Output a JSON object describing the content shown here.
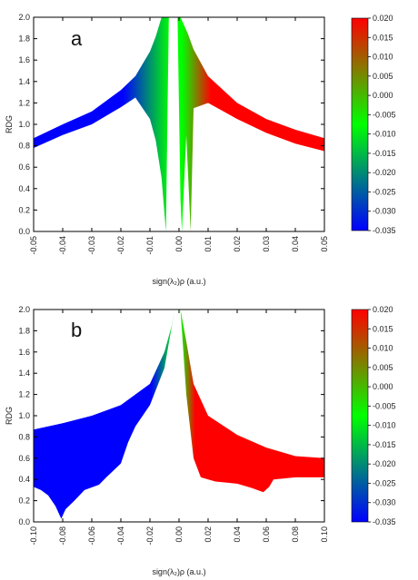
{
  "chart_data": [
    {
      "type": "scatter",
      "panel_label": "a",
      "xlabel": "sign(λ₂)ρ (a.u.)",
      "ylabel": "RDG",
      "xlim": [
        -0.05,
        0.05
      ],
      "ylim": [
        0.0,
        2.0
      ],
      "xticks": [
        "-0.05",
        "-0.04",
        "-0.03",
        "-0.02",
        "-0.01",
        "0.00",
        "0.01",
        "0.02",
        "0.03",
        "0.04",
        "0.05"
      ],
      "yticks": [
        "0.0",
        "0.2",
        "0.4",
        "0.6",
        "0.8",
        "1.0",
        "1.2",
        "1.4",
        "1.6",
        "1.8",
        "2.0"
      ],
      "colorbar": {
        "range": [
          -0.035,
          0.02
        ],
        "ticks": [
          "0.020",
          "0.015",
          "0.010",
          "0.005",
          "0.000",
          "-0.005",
          "-0.010",
          "-0.015",
          "-0.020",
          "-0.025",
          "-0.030",
          "-0.035"
        ],
        "colors": [
          "#0000ff",
          "#00ff00",
          "#ff0000"
        ]
      },
      "bands": [
        {
          "upper": [
            [
              -0.05,
              0.87
            ],
            [
              -0.04,
              1.0
            ],
            [
              -0.03,
              1.12
            ],
            [
              -0.02,
              1.32
            ],
            [
              -0.015,
              1.45
            ],
            [
              -0.01,
              1.68
            ],
            [
              -0.008,
              1.82
            ],
            [
              -0.006,
              2.0
            ]
          ],
          "lower": [
            [
              -0.05,
              0.78
            ],
            [
              -0.04,
              0.9
            ],
            [
              -0.03,
              1.0
            ],
            [
              -0.02,
              1.16
            ],
            [
              -0.015,
              1.25
            ],
            [
              -0.01,
              1.05
            ],
            [
              -0.008,
              0.85
            ],
            [
              -0.006,
              0.5
            ],
            [
              -0.0045,
              0.0
            ]
          ],
          "inner": [
            [
              -0.0045,
              0.0
            ],
            [
              -0.0035,
              2.0
            ]
          ]
        },
        {
          "spike": [
            [
              -0.0005,
              2.0
            ],
            [
              0.0005,
              0.3
            ],
            [
              0.001,
              0.0
            ],
            [
              0.0015,
              0.3
            ],
            [
              0.0025,
              0.9
            ]
          ],
          "upper": [
            [
              0.0005,
              2.0
            ],
            [
              0.003,
              1.85
            ],
            [
              0.005,
              1.7
            ],
            [
              0.01,
              1.45
            ],
            [
              0.02,
              1.2
            ],
            [
              0.03,
              1.05
            ],
            [
              0.04,
              0.95
            ],
            [
              0.05,
              0.87
            ]
          ],
          "lower": [
            [
              0.0025,
              0.9
            ],
            [
              0.004,
              0.0
            ],
            [
              0.005,
              1.15
            ],
            [
              0.01,
              1.2
            ],
            [
              0.02,
              1.05
            ],
            [
              0.03,
              0.92
            ],
            [
              0.04,
              0.82
            ],
            [
              0.05,
              0.75
            ]
          ]
        }
      ]
    },
    {
      "type": "scatter",
      "panel_label": "b",
      "xlabel": "sign(λ₂)ρ (a.u.)",
      "ylabel": "RDG",
      "xlim": [
        -0.1,
        0.1
      ],
      "ylim": [
        0.0,
        2.0
      ],
      "xticks": [
        "-0.10",
        "-0.08",
        "-0.06",
        "-0.04",
        "-0.02",
        "0.00",
        "0.02",
        "0.04",
        "0.06",
        "0.08",
        "0.10"
      ],
      "yticks": [
        "0.0",
        "0.2",
        "0.4",
        "0.6",
        "0.8",
        "1.0",
        "1.2",
        "1.4",
        "1.6",
        "1.8",
        "2.0"
      ],
      "colorbar": {
        "range": [
          -0.035,
          0.02
        ],
        "ticks": [
          "0.020",
          "0.015",
          "0.010",
          "0.005",
          "0.000",
          "-0.005",
          "-0.010",
          "-0.015",
          "-0.020",
          "-0.025",
          "-0.030",
          "-0.035"
        ],
        "colors": [
          "#0000ff",
          "#00ff00",
          "#ff0000"
        ]
      },
      "bands": [
        {
          "upper": [
            [
              -0.1,
              0.87
            ],
            [
              -0.08,
              0.93
            ],
            [
              -0.06,
              1.0
            ],
            [
              -0.04,
              1.1
            ],
            [
              -0.02,
              1.3
            ],
            [
              -0.01,
              1.6
            ],
            [
              -0.005,
              1.85
            ],
            [
              -0.003,
              2.0
            ]
          ],
          "lower": [
            [
              -0.003,
              2.0
            ],
            [
              -0.01,
              1.45
            ],
            [
              -0.02,
              1.1
            ],
            [
              -0.03,
              0.9
            ],
            [
              -0.035,
              0.75
            ],
            [
              -0.04,
              0.55
            ],
            [
              -0.05,
              0.42
            ],
            [
              -0.055,
              0.35
            ],
            [
              -0.065,
              0.3
            ],
            [
              -0.072,
              0.2
            ],
            [
              -0.078,
              0.12
            ],
            [
              -0.081,
              0.03
            ],
            [
              -0.085,
              0.15
            ],
            [
              -0.09,
              0.25
            ],
            [
              -0.095,
              0.3
            ],
            [
              -0.1,
              0.33
            ]
          ]
        },
        {
          "upper": [
            [
              0.001,
              2.0
            ],
            [
              0.005,
              1.7
            ],
            [
              0.01,
              1.3
            ],
            [
              0.02,
              1.0
            ],
            [
              0.04,
              0.82
            ],
            [
              0.06,
              0.7
            ],
            [
              0.08,
              0.62
            ],
            [
              0.1,
              0.6
            ]
          ],
          "lower": [
            [
              0.1,
              0.42
            ],
            [
              0.08,
              0.42
            ],
            [
              0.065,
              0.4
            ],
            [
              0.062,
              0.33
            ],
            [
              0.058,
              0.28
            ],
            [
              0.05,
              0.32
            ],
            [
              0.04,
              0.36
            ],
            [
              0.025,
              0.38
            ],
            [
              0.015,
              0.42
            ],
            [
              0.01,
              0.6
            ],
            [
              0.005,
              1.2
            ],
            [
              0.002,
              1.8
            ],
            [
              0.001,
              2.0
            ]
          ]
        }
      ]
    }
  ]
}
